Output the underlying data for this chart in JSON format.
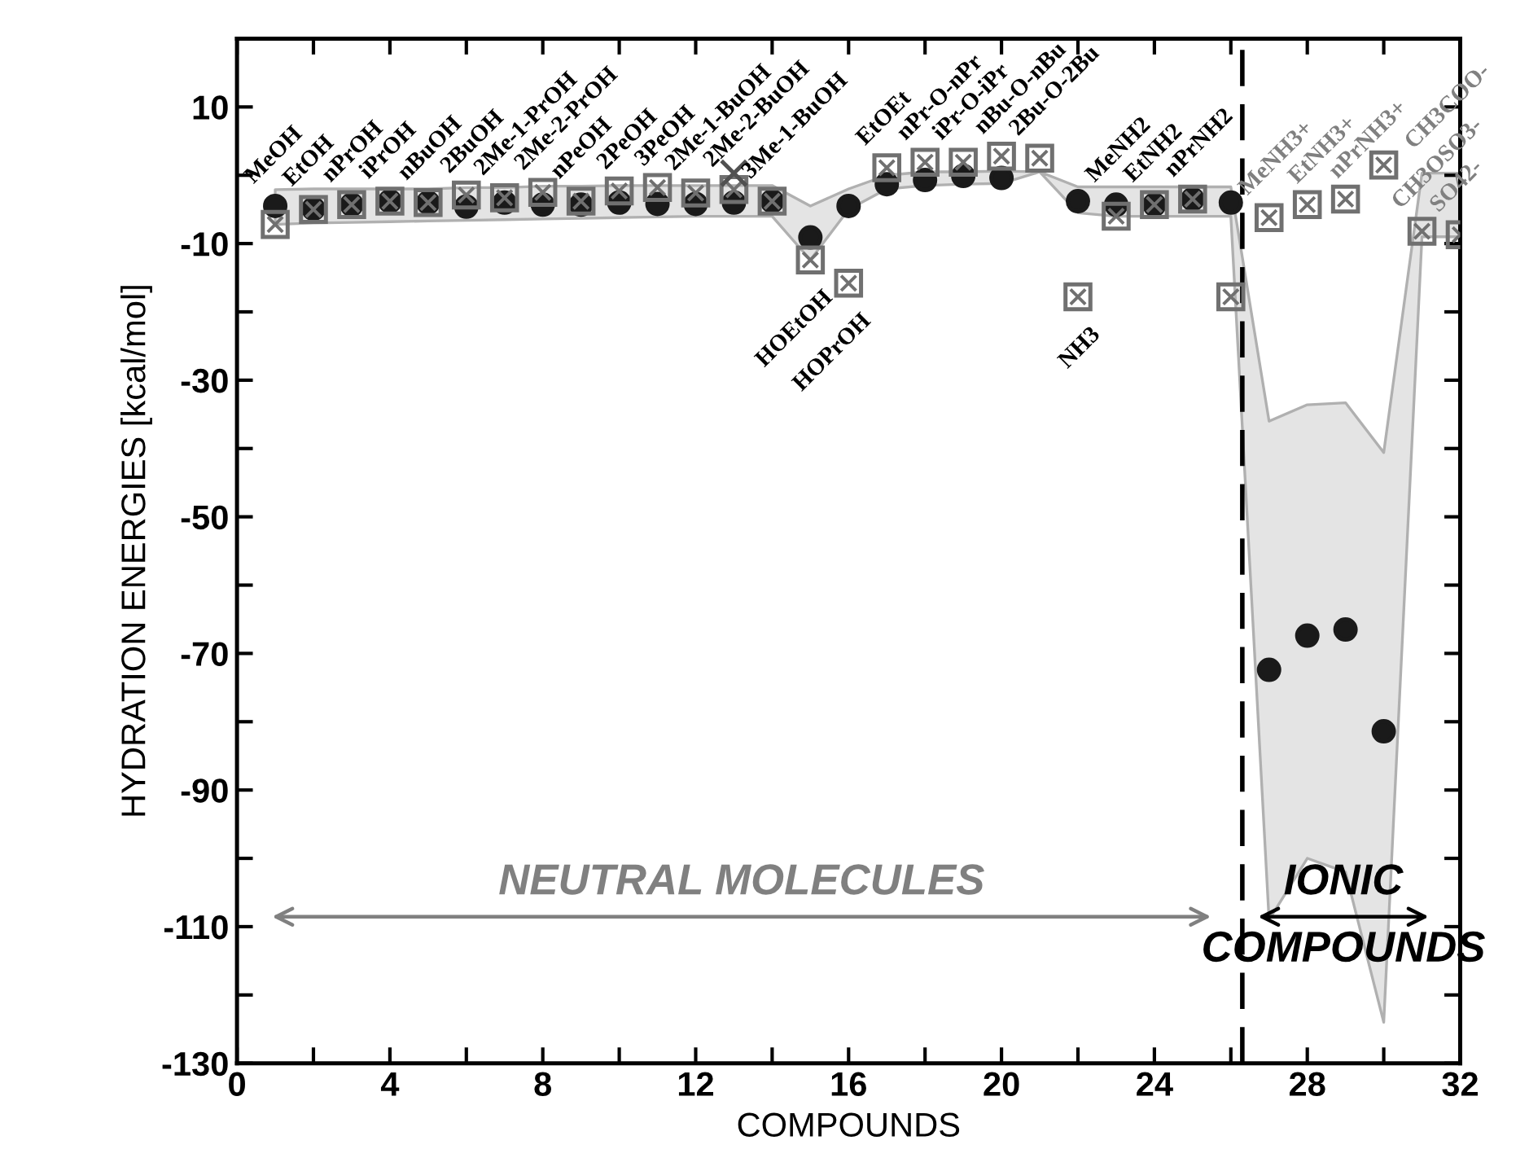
{
  "chart_data": {
    "type": "scatter",
    "xlabel": "COMPOUNDS",
    "ylabel": "HYDRATION ENERGIES [kcal/mol]",
    "x": [
      1,
      2,
      3,
      4,
      5,
      6,
      7,
      8,
      9,
      10,
      11,
      12,
      13,
      14,
      15,
      16,
      17,
      18,
      19,
      20,
      21,
      22,
      23,
      24,
      25,
      26,
      27,
      28,
      29,
      30,
      31,
      32
    ],
    "series": [
      {
        "marker": "circle",
        "color": "#1a1a1a",
        "values": [
          -4.5,
          -4.9,
          -4.3,
          -3.8,
          -4,
          -4.6,
          -4,
          -4.3,
          -4.3,
          -4,
          -4.2,
          -4.2,
          -4,
          -3.8,
          -9.1,
          -4.5,
          -1.3,
          -0.7,
          -0.1,
          -0.4,
          null,
          -3.8,
          -4.3,
          -4.3,
          -3.5,
          -4,
          -72.4,
          -67.4,
          -66.5,
          -81.4,
          null,
          null
        ],
        "lower": [
          -7.2,
          -7,
          -6.9,
          -6.8,
          -6.7,
          -6.6,
          -6.5,
          -6.4,
          -6.3,
          -6.2,
          -6.1,
          -6,
          -6,
          -6,
          -12.4,
          -5,
          -2,
          -1.5,
          -1.3,
          -1.2,
          0.5,
          -5.5,
          -6,
          -6,
          -6,
          -6,
          -109,
          -100,
          -102,
          -124,
          -9,
          -9
        ],
        "upper": [
          -2.1,
          -2,
          -2,
          -2,
          -2,
          -1.8,
          -1.8,
          -1.6,
          -1.6,
          -1.5,
          -1.5,
          -1.5,
          -1.5,
          -1.5,
          -4.5,
          -2,
          0,
          0.5,
          0.5,
          0.6,
          0.5,
          -1.7,
          -1.7,
          -1.7,
          -1.7,
          -1.7,
          -36,
          -33.6,
          -33.3,
          -40.6,
          0.3,
          0.3
        ]
      },
      {
        "marker": "square",
        "color": "#707070",
        "values": [
          -7.2,
          -5,
          -4.3,
          -3.8,
          -4,
          -2.9,
          -3.3,
          -2.5,
          -3.8,
          -2.3,
          -1.8,
          -2.6,
          -2.1,
          -3.8,
          -12.4,
          -15.8,
          1.1,
          1.9,
          1.9,
          2.8,
          2.5,
          -17.8,
          -6,
          -4.3,
          -3.5,
          -17.8,
          -6.2,
          -4.3,
          -3.5,
          1.5,
          -8.2,
          -8.7
        ]
      },
      {
        "marker": "cross",
        "color": "#505050",
        "values": [
          null,
          null,
          null,
          null,
          null,
          null,
          null,
          null,
          null,
          null,
          null,
          null,
          0.3,
          null,
          null,
          null,
          null,
          null,
          null,
          null,
          null,
          null,
          null,
          null,
          null,
          null,
          null,
          null,
          null,
          null,
          null,
          null
        ]
      }
    ],
    "xlim": [
      0,
      32
    ],
    "xticks": [
      0,
      {
        "value": 2,
        "label": null
      },
      4,
      {
        "value": 6,
        "label": null
      },
      8,
      {
        "value": 10,
        "label": null
      },
      12,
      {
        "value": 14,
        "label": null
      },
      16,
      {
        "value": 18,
        "label": null
      },
      20,
      {
        "value": 22,
        "label": null
      },
      24,
      {
        "value": 26,
        "label": null
      },
      28,
      {
        "value": 30,
        "label": null
      },
      32
    ],
    "ylim": [
      -130,
      20
    ],
    "yticks": [
      10,
      {
        "value": 0,
        "label": null
      },
      -10,
      {
        "value": -20,
        "label": null
      },
      -30,
      {
        "value": -40,
        "label": null
      },
      -50,
      {
        "value": -60,
        "label": null
      },
      -70,
      {
        "value": -80,
        "label": null
      },
      -90,
      {
        "value": -100,
        "label": null
      },
      -110,
      {
        "value": -120,
        "label": null
      },
      -130
    ],
    "grid": false,
    "legend": false,
    "ref_lines": [
      {
        "axis": "x",
        "value": 26.3,
        "line_style": "dashed",
        "color": "#000000"
      }
    ],
    "annotations": [
      "NEUTRAL MOLECULES",
      "IONIC\nCOMPOUNDS",
      {
        "text": "MeOH",
        "x": 1,
        "y": -4.5
      },
      {
        "text": "EtOH",
        "x": 2,
        "y": -4.9
      },
      {
        "text": "nPrOH",
        "x": 3,
        "y": -4.3
      },
      {
        "text": "iPrOH",
        "x": 4,
        "y": -3.8
      },
      {
        "text": "nBuOH",
        "x": 5,
        "y": -4
      },
      {
        "text": "2BuOH",
        "x": 6,
        "y": -2.9
      },
      {
        "text": "2Me-1-PrOH",
        "x": 7,
        "y": -3.3
      },
      {
        "text": "2Me-2-PrOH",
        "x": 8,
        "y": -2.5
      },
      {
        "text": "nPeOH",
        "x": 9,
        "y": -3.8
      },
      {
        "text": "2PeOH",
        "x": 10,
        "y": -2.3
      },
      {
        "text": "3PeOH",
        "x": 11,
        "y": -1.8
      },
      {
        "text": "2Me-1-BuOH",
        "x": 12,
        "y": -2.6
      },
      {
        "text": "2Me-2-BuOH",
        "x": 13,
        "y": -2.1
      },
      {
        "text": "3Me-1-BuOH",
        "x": 14,
        "y": -3.8
      },
      {
        "text": "HOEtOH",
        "x": 15,
        "y": -12.4
      },
      {
        "text": "HOPrOH",
        "x": 16,
        "y": -15.8
      },
      {
        "text": "EtOEt",
        "x": 17,
        "y": 1.1
      },
      {
        "text": "nPr-O-nPr",
        "x": 18,
        "y": 1.9
      },
      {
        "text": "iPr-O-iPr",
        "x": 19,
        "y": 1.9
      },
      {
        "text": "nBu-O-nBu",
        "x": 20,
        "y": 2.8
      },
      {
        "text": "2Bu-O-2Bu",
        "x": 21,
        "y": 2.5
      },
      {
        "text": "NH3",
        "x": 22,
        "y": -17.8
      },
      {
        "text": "MeNH2",
        "x": 23,
        "y": -4.3
      },
      {
        "text": "EtNH2",
        "x": 24,
        "y": -4.3
      },
      {
        "text": "nPrNH2",
        "x": 25,
        "y": -3.5
      },
      {
        "text": "MeNH3+",
        "x": 27,
        "y": -6.2
      },
      {
        "text": "EtNH3+",
        "x": 28,
        "y": -4.3
      },
      {
        "text": "nPrNH3+",
        "x": 29,
        "y": -3.5
      },
      {
        "text": "CH3COO-",
        "x": 30,
        "y": 1.5
      },
      {
        "text": "CH3OSO3-",
        "x": 31,
        "y": -8.2
      },
      {
        "text": "SO42-",
        "x": 32,
        "y": -8.7
      }
    ]
  }
}
